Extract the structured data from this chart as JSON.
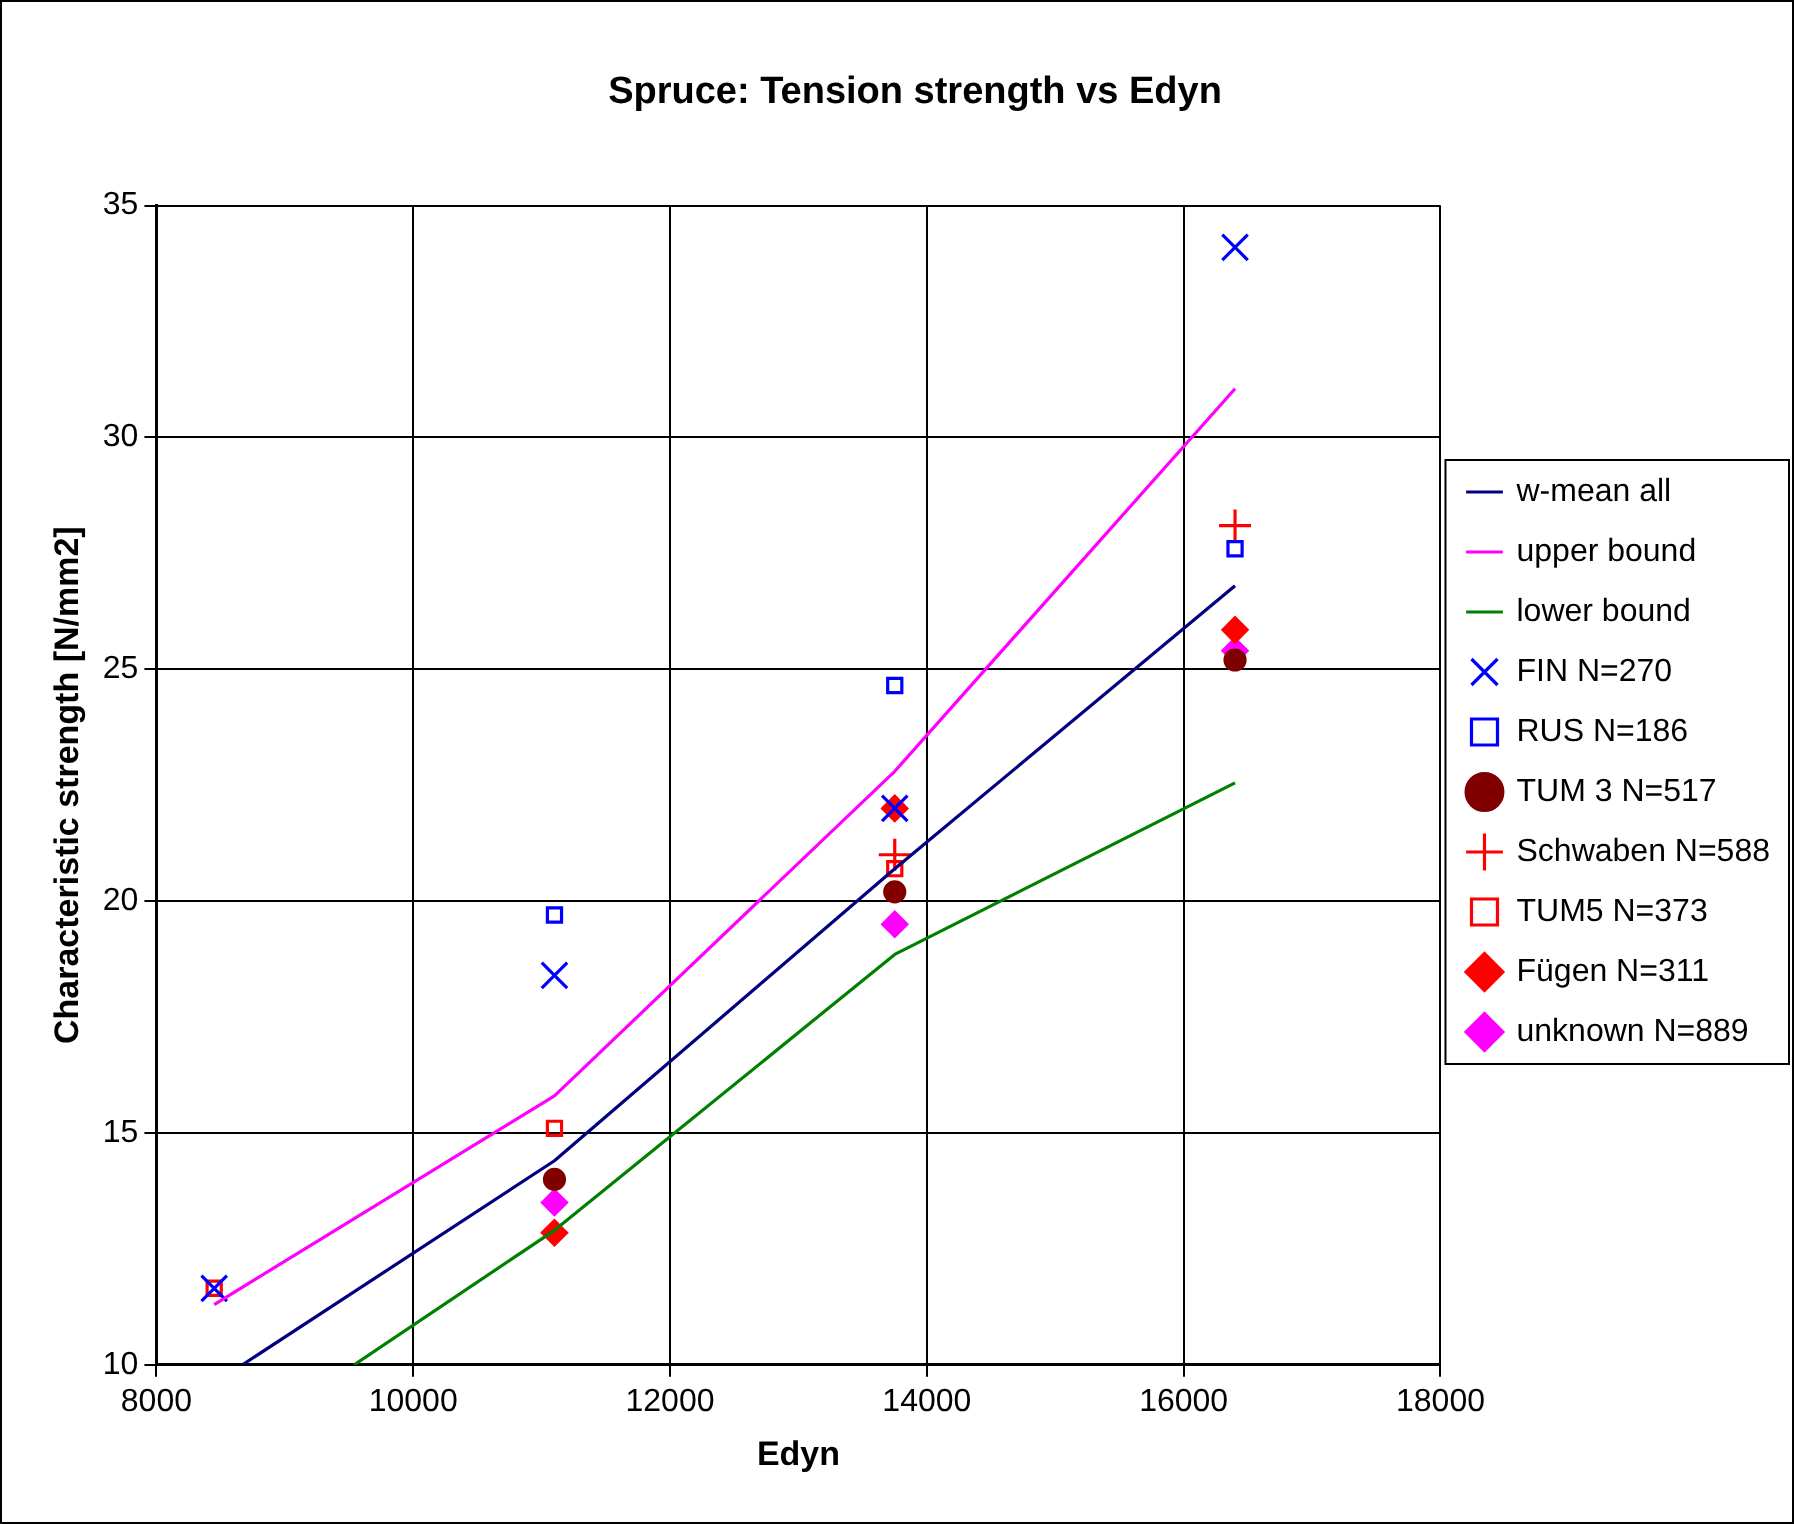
{
  "chart_data": {
    "type": "scatter",
    "title": "Spruce: Tension strength vs Edyn",
    "xlabel": "Edyn",
    "ylabel": "Characteristic strength [N/mm2]",
    "x": [
      8450,
      11100,
      13750,
      16400
    ],
    "xlim": [
      8000,
      18000
    ],
    "xticks": [
      8000,
      10000,
      12000,
      14000,
      16000,
      18000
    ],
    "ylim": [
      10,
      35
    ],
    "yticks": [
      10,
      15,
      20,
      25,
      30,
      35
    ],
    "grid": true,
    "legend": "right",
    "series": [
      {
        "name": "w-mean all",
        "type": "line",
        "color": "#000080",
        "marker": "none",
        "x": [
          8670,
          11100,
          13750,
          16400
        ],
        "values": [
          10,
          14.4,
          20.7,
          26.8
        ]
      },
      {
        "name": "upper bound",
        "type": "line",
        "color": "#ff00ff",
        "marker": "none",
        "values": [
          11.3,
          15.8,
          22.8,
          31.05
        ]
      },
      {
        "name": "lower bound",
        "type": "line",
        "color": "#008000",
        "marker": "none",
        "x": [
          9540,
          11100,
          13750,
          16400
        ],
        "values": [
          10,
          12.9,
          18.85,
          22.55
        ]
      },
      {
        "name": "FIN N=270",
        "color": "#0000ff",
        "marker": "x",
        "values": [
          11.65,
          18.4,
          22.0,
          34.1
        ]
      },
      {
        "name": "RUS N=186",
        "color": "#0000ff",
        "marker": "square",
        "values": [
          null,
          19.7,
          24.65,
          27.6
        ]
      },
      {
        "name": "TUM 3 N=517",
        "color": "#800000",
        "marker": "circle",
        "values": [
          null,
          14.0,
          20.2,
          25.2
        ]
      },
      {
        "name": "Schwaben N=588",
        "color": "#ff0000",
        "marker": "cross",
        "values": [
          null,
          null,
          21.0,
          28.1
        ]
      },
      {
        "name": "TUM5 N=373",
        "color": "#ff0000",
        "marker": "square",
        "values": [
          11.65,
          15.1,
          20.7,
          null
        ]
      },
      {
        "name": "Fügen N=311",
        "color": "#ff0000",
        "marker": "diamond",
        "values": [
          null,
          12.85,
          22.0,
          25.85
        ]
      },
      {
        "name": "unknown N=889",
        "color": "#ff00ff",
        "marker": "diamond",
        "values": [
          null,
          13.5,
          19.5,
          25.4
        ]
      }
    ]
  }
}
